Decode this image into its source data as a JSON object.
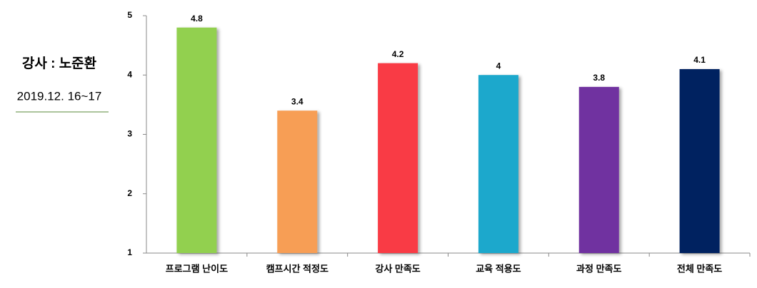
{
  "chart_data": {
    "type": "bar",
    "annotations": [
      "강사 : 노준환",
      "2019.12. 16~17"
    ],
    "categories": [
      "프로그램 난이도",
      "캠프시간 적정도",
      "강사 만족도",
      "교육 적용도",
      "과정 만족도",
      "전체 만족도"
    ],
    "values": [
      4.8,
      3.4,
      4.2,
      4,
      3.8,
      4.1
    ],
    "colors": [
      "#92d050",
      "#f79e55",
      "#f93b45",
      "#1aa8cc",
      "#7030a0",
      "#002060"
    ],
    "ylim": [
      1,
      5
    ],
    "yticks": [
      1,
      2,
      3,
      4,
      5
    ],
    "grid": false
  }
}
